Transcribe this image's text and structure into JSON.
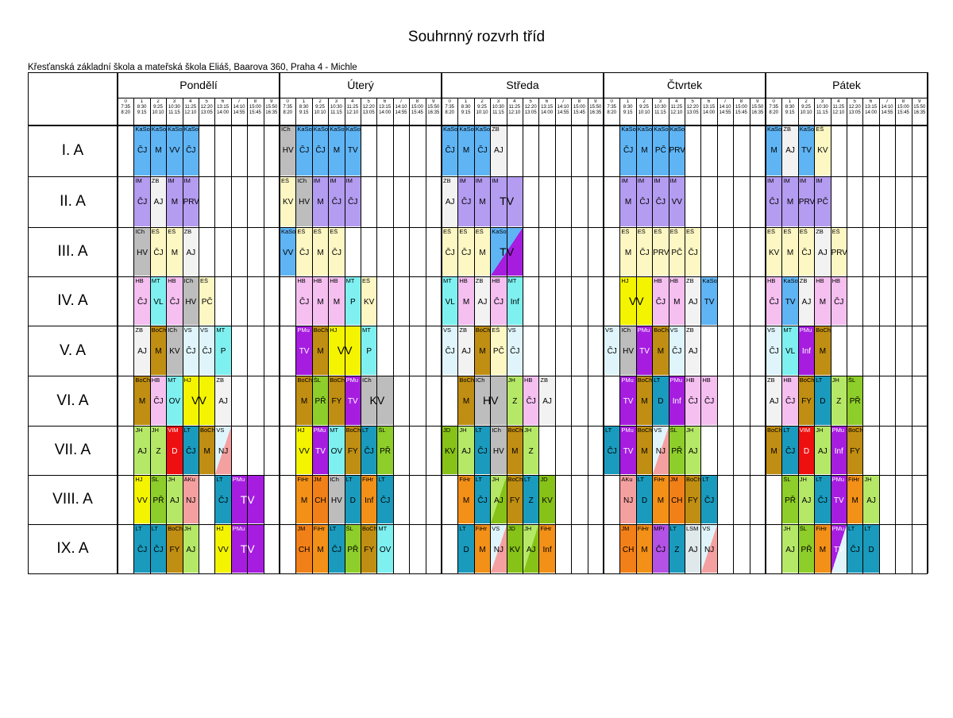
{
  "page": {
    "title": "Souhrnný rozvrh tříd",
    "school": "Křesťanská základní škola a mateřská škola Eliáš, Baarova 360, Praha 4 - Michle"
  },
  "days": [
    "Pondělí",
    "Úterý",
    "Středa",
    "Čtvrtek",
    "Pátek"
  ],
  "periods": [
    {
      "n": "0",
      "start": "7:35",
      "end": "8:20"
    },
    {
      "n": "1",
      "start": "8:30",
      "end": "9:15"
    },
    {
      "n": "2",
      "start": "9:25",
      "end": "10:10"
    },
    {
      "n": "3",
      "start": "10:30",
      "end": "11:15"
    },
    {
      "n": "4",
      "start": "11:25",
      "end": "12:10"
    },
    {
      "n": "5",
      "start": "12:20",
      "end": "13:05"
    },
    {
      "n": "6",
      "start": "13:15",
      "end": "14:00"
    },
    {
      "n": "7",
      "start": "14:10",
      "end": "14:55"
    },
    {
      "n": "8",
      "start": "15:00",
      "end": "15:45"
    },
    {
      "n": "9",
      "start": "15:50",
      "end": "16:35"
    }
  ],
  "classes": [
    "I. A",
    "II. A",
    "III. A",
    "IV. A",
    "V. A",
    "VI. A",
    "VII. A",
    "VIII. A",
    "IX. A"
  ],
  "colors": {
    "KaSo": "#5fb4f4",
    "IM": "#b49cf0",
    "ZB": "#f2f2f2",
    "ICh": "#bdbdbd",
    "EŠ": "#fdf7c4",
    "HB": "#f5bff0",
    "MT": "#7ff0f0",
    "BoCh": "#c08e12",
    "VS": "#dff5fb",
    "HJ": "#f4f400",
    "PMu": "#a61de0",
    "ŠL": "#8ece2a",
    "JH": "#b6e868",
    "VIM": "#ee1010",
    "LT": "#1a9bbd",
    "AKu": "#f5a0a0",
    "FiHr": "#f29018",
    "JM": "#f28018",
    "LSM": "#dfe8ea",
    "JD": "#86c218",
    "NJ": "#f5a0a0",
    "MPr": "#b452e6"
  },
  "schedule": [
    [
      [
        [
          1,
          "KaSo",
          "ČJ"
        ],
        [
          2,
          "KaSo",
          "M"
        ],
        [
          3,
          "KaSo",
          "VV"
        ],
        [
          4,
          "KaSo",
          "ČJ"
        ]
      ],
      [
        [
          0,
          "ICh",
          "HV"
        ],
        [
          1,
          "KaSo",
          "ČJ"
        ],
        [
          2,
          "KaSo",
          "ČJ"
        ],
        [
          3,
          "KaSo",
          "M"
        ],
        [
          4,
          "KaSo",
          "TV"
        ]
      ],
      [
        [
          0,
          "KaSo",
          "ČJ"
        ],
        [
          1,
          "KaSo",
          "M"
        ],
        [
          2,
          "KaSo",
          "ČJ"
        ],
        [
          3,
          "ZB",
          "AJ"
        ]
      ],
      [
        [
          1,
          "KaSo",
          "ČJ"
        ],
        [
          2,
          "KaSo",
          "M"
        ],
        [
          3,
          "KaSo",
          "PČ"
        ],
        [
          4,
          "KaSo",
          "PRV"
        ]
      ],
      [
        [
          0,
          "KaSo",
          "M"
        ],
        [
          1,
          "ZB",
          "AJ"
        ],
        [
          2,
          "KaSo",
          "TV"
        ],
        [
          3,
          "EŠ",
          "KV"
        ]
      ]
    ],
    [
      [
        [
          1,
          "IM",
          "ČJ"
        ],
        [
          2,
          "ZB",
          "AJ"
        ],
        [
          3,
          "IM",
          "M"
        ],
        [
          4,
          "IM",
          "PRV"
        ]
      ],
      [
        [
          0,
          "EŠ",
          "KV"
        ],
        [
          1,
          "ICh",
          "HV"
        ],
        [
          2,
          "IM",
          "M"
        ],
        [
          3,
          "IM",
          "ČJ"
        ],
        [
          4,
          "IM",
          "ČJ"
        ]
      ],
      [
        [
          0,
          "ZB",
          "AJ"
        ],
        [
          1,
          "IM",
          "ČJ"
        ],
        [
          2,
          "IM",
          "M"
        ],
        [
          3,
          "IM",
          "TV",
          2
        ]
      ],
      [
        [
          1,
          "IM",
          "M"
        ],
        [
          2,
          "IM",
          "ČJ"
        ],
        [
          3,
          "IM",
          "ČJ"
        ],
        [
          4,
          "IM",
          "VV"
        ]
      ],
      [
        [
          0,
          "IM",
          "ČJ"
        ],
        [
          1,
          "IM",
          "M"
        ],
        [
          2,
          "IM",
          "PRV"
        ],
        [
          3,
          "IM",
          "PČ"
        ]
      ]
    ],
    [
      [
        [
          1,
          "ICh",
          "HV"
        ],
        [
          2,
          "EŠ",
          "ČJ"
        ],
        [
          3,
          "EŠ",
          "M"
        ],
        [
          4,
          "ZB",
          "AJ"
        ]
      ],
      [
        [
          0,
          "KaSo",
          "VV"
        ],
        [
          1,
          "EŠ",
          "ČJ"
        ],
        [
          2,
          "EŠ",
          "M"
        ],
        [
          3,
          "EŠ",
          "ČJ"
        ]
      ],
      [
        [
          0,
          "EŠ",
          "ČJ"
        ],
        [
          1,
          "EŠ",
          "ČJ"
        ],
        [
          2,
          "EŠ",
          "M"
        ],
        [
          3,
          "KaSo",
          "TV",
          2,
          "PMu"
        ]
      ],
      [
        [
          1,
          "EŠ",
          "M"
        ],
        [
          2,
          "EŠ",
          "ČJ"
        ],
        [
          3,
          "EŠ",
          "PRV"
        ],
        [
          4,
          "EŠ",
          "PČ"
        ],
        [
          5,
          "EŠ",
          "ČJ"
        ]
      ],
      [
        [
          0,
          "EŠ",
          "KV"
        ],
        [
          1,
          "EŠ",
          "M"
        ],
        [
          2,
          "EŠ",
          "ČJ"
        ],
        [
          3,
          "ZB",
          "AJ"
        ],
        [
          4,
          "EŠ",
          "PRV"
        ]
      ]
    ],
    [
      [
        [
          1,
          "HB",
          "ČJ"
        ],
        [
          2,
          "MT",
          "VL"
        ],
        [
          3,
          "HB",
          "ČJ"
        ],
        [
          4,
          "ICh",
          "HV"
        ],
        [
          5,
          "EŠ",
          "PČ"
        ]
      ],
      [
        [
          1,
          "HB",
          "ČJ"
        ],
        [
          2,
          "HB",
          "M"
        ],
        [
          3,
          "HB",
          "M"
        ],
        [
          4,
          "MT",
          "P"
        ],
        [
          5,
          "EŠ",
          "KV"
        ]
      ],
      [
        [
          0,
          "MT",
          "VL"
        ],
        [
          1,
          "HB",
          "M"
        ],
        [
          2,
          "ZB",
          "AJ"
        ],
        [
          3,
          "HB",
          "ČJ"
        ],
        [
          4,
          "MT",
          "Inf"
        ]
      ],
      [
        [
          1,
          "HJ",
          "VV",
          2
        ],
        [
          3,
          "HB",
          "ČJ"
        ],
        [
          4,
          "HB",
          "M"
        ],
        [
          5,
          "ZB",
          "AJ"
        ],
        [
          6,
          "KaSo",
          "TV"
        ]
      ],
      [
        [
          0,
          "HB",
          "ČJ"
        ],
        [
          1,
          "KaSo",
          "TV"
        ],
        [
          2,
          "ZB",
          "AJ"
        ],
        [
          3,
          "HB",
          "M"
        ],
        [
          4,
          "HB",
          "ČJ"
        ]
      ]
    ],
    [
      [
        [
          1,
          "ZB",
          "AJ"
        ],
        [
          2,
          "BoCh",
          "M"
        ],
        [
          3,
          "ICh",
          "KV"
        ],
        [
          4,
          "VS",
          "ČJ"
        ],
        [
          5,
          "VS",
          "ČJ"
        ],
        [
          6,
          "MT",
          "P"
        ]
      ],
      [
        [
          1,
          "PMu",
          "TV"
        ],
        [
          2,
          "BoCh",
          "M"
        ],
        [
          3,
          "HJ",
          "VV",
          2
        ],
        [
          5,
          "MT",
          "P"
        ]
      ],
      [
        [
          0,
          "VS",
          "ČJ"
        ],
        [
          1,
          "ZB",
          "AJ"
        ],
        [
          2,
          "BoCh",
          "M"
        ],
        [
          3,
          "EŠ",
          "PČ"
        ],
        [
          4,
          "VS",
          "ČJ"
        ]
      ],
      [
        [
          0,
          "VS",
          "ČJ"
        ],
        [
          1,
          "ICh",
          "HV"
        ],
        [
          2,
          "PMu",
          "TV"
        ],
        [
          3,
          "BoCh",
          "M"
        ],
        [
          4,
          "VS",
          "ČJ"
        ],
        [
          5,
          "ZB",
          "AJ"
        ]
      ],
      [
        [
          0,
          "VS",
          "ČJ"
        ],
        [
          1,
          "MT",
          "VL"
        ],
        [
          2,
          "PMu",
          "Inf"
        ],
        [
          3,
          "BoCh",
          "M"
        ]
      ]
    ],
    [
      [
        [
          1,
          "BoCh",
          "M"
        ],
        [
          2,
          "HB",
          "ČJ"
        ],
        [
          3,
          "MT",
          "OV"
        ],
        [
          4,
          "HJ",
          "VV",
          2
        ],
        [
          6,
          "ZB",
          "AJ"
        ]
      ],
      [
        [
          1,
          "BoCh",
          "M"
        ],
        [
          2,
          "ŠL",
          "PŘ"
        ],
        [
          3,
          "BoCh",
          "FY"
        ],
        [
          4,
          "PMu",
          "TV"
        ],
        [
          5,
          "ICh",
          "KV",
          2
        ]
      ],
      [
        [
          1,
          "BoCh",
          "M"
        ],
        [
          2,
          "ICh",
          "HV",
          2
        ],
        [
          4,
          "JH",
          "Z"
        ],
        [
          5,
          "HB",
          "ČJ"
        ],
        [
          6,
          "ZB",
          "AJ"
        ]
      ],
      [
        [
          1,
          "PMu",
          "TV"
        ],
        [
          2,
          "BoCh",
          "M"
        ],
        [
          3,
          "LT",
          "D"
        ],
        [
          4,
          "PMu",
          "Inf"
        ],
        [
          5,
          "HB",
          "ČJ"
        ],
        [
          6,
          "HB",
          "ČJ"
        ]
      ],
      [
        [
          0,
          "ZB",
          "AJ"
        ],
        [
          1,
          "HB",
          "ČJ"
        ],
        [
          2,
          "BoCh",
          "FY"
        ],
        [
          3,
          "LT",
          "D"
        ],
        [
          4,
          "JH",
          "Z"
        ],
        [
          5,
          "ŠL",
          "PŘ"
        ]
      ]
    ],
    [
      [
        [
          1,
          "JH",
          "AJ"
        ],
        [
          2,
          "JH",
          "Z"
        ],
        [
          3,
          "VIM",
          "D"
        ],
        [
          4,
          "LT",
          "ČJ"
        ],
        [
          5,
          "BoCh",
          "M"
        ],
        [
          6,
          "VS",
          "NJ",
          1,
          "NJ"
        ]
      ],
      [
        [
          1,
          "HJ",
          "VV"
        ],
        [
          2,
          "PMu",
          "TV"
        ],
        [
          3,
          "MT",
          "OV"
        ],
        [
          4,
          "BoCh",
          "FY"
        ],
        [
          5,
          "LT",
          "ČJ"
        ],
        [
          6,
          "ŠL",
          "PŘ"
        ]
      ],
      [
        [
          0,
          "JD",
          "KV"
        ],
        [
          1,
          "JH",
          "AJ"
        ],
        [
          2,
          "LT",
          "ČJ"
        ],
        [
          3,
          "ICh",
          "HV"
        ],
        [
          4,
          "BoCh",
          "M"
        ],
        [
          5,
          "JH",
          "Z"
        ]
      ],
      [
        [
          0,
          "LT",
          "ČJ"
        ],
        [
          1,
          "PMu",
          "TV"
        ],
        [
          2,
          "BoCh",
          "M"
        ],
        [
          3,
          "VS",
          "NJ",
          1,
          "NJ"
        ],
        [
          4,
          "ŠL",
          "PŘ"
        ],
        [
          5,
          "JH",
          "AJ"
        ]
      ],
      [
        [
          0,
          "BoCh",
          "M"
        ],
        [
          1,
          "LT",
          "ČJ"
        ],
        [
          2,
          "VIM",
          "D"
        ],
        [
          3,
          "JH",
          "AJ"
        ],
        [
          4,
          "PMu",
          "Inf"
        ],
        [
          5,
          "BoCh",
          "FY"
        ]
      ]
    ],
    [
      [
        [
          1,
          "HJ",
          "VV"
        ],
        [
          2,
          "ŠL",
          "PŘ"
        ],
        [
          3,
          "JH",
          "AJ"
        ],
        [
          4,
          "AKu",
          "NJ"
        ],
        [
          6,
          "LT",
          "ČJ"
        ],
        [
          7,
          "PMu",
          "TV",
          2,
          "PMu"
        ]
      ],
      [
        [
          1,
          "FiHr",
          "M"
        ],
        [
          2,
          "JM",
          "CH"
        ],
        [
          3,
          "ICh",
          "HV"
        ],
        [
          4,
          "LT",
          "D"
        ],
        [
          5,
          "FiHr",
          "Inf"
        ],
        [
          6,
          "LT",
          "ČJ"
        ]
      ],
      [
        [
          1,
          "FiHr",
          "M"
        ],
        [
          2,
          "LT",
          "ČJ"
        ],
        [
          3,
          "JH",
          "AJ",
          1,
          "JD"
        ],
        [
          4,
          "BoCh",
          "FY"
        ],
        [
          5,
          "LT",
          "Z"
        ],
        [
          6,
          "JD",
          "KV"
        ]
      ],
      [
        [
          1,
          "AKu",
          "NJ"
        ],
        [
          2,
          "LT",
          "D"
        ],
        [
          3,
          "FiHr",
          "M"
        ],
        [
          4,
          "JM",
          "CH"
        ],
        [
          5,
          "BoCh",
          "FY"
        ],
        [
          6,
          "LT",
          "ČJ"
        ]
      ],
      [
        [
          1,
          "ŠL",
          "PŘ"
        ],
        [
          2,
          "JH",
          "AJ"
        ],
        [
          3,
          "LT",
          "ČJ"
        ],
        [
          4,
          "PMu",
          "TV",
          1,
          "PMu"
        ],
        [
          5,
          "FiHr",
          "M"
        ],
        [
          6,
          "JH",
          "AJ"
        ]
      ]
    ],
    [
      [
        [
          1,
          "LT",
          "ČJ"
        ],
        [
          2,
          "LT",
          "ČJ"
        ],
        [
          3,
          "BoCh",
          "FY"
        ],
        [
          4,
          "JH",
          "AJ"
        ],
        [
          6,
          "HJ",
          "VV"
        ],
        [
          7,
          "PMu",
          "TV",
          2,
          "PMu"
        ]
      ],
      [
        [
          1,
          "JM",
          "CH"
        ],
        [
          2,
          "FiHr",
          "M"
        ],
        [
          3,
          "LT",
          "ČJ"
        ],
        [
          4,
          "ŠL",
          "PŘ"
        ],
        [
          5,
          "BoCh",
          "FY"
        ],
        [
          6,
          "MT",
          "OV"
        ]
      ],
      [
        [
          1,
          "LT",
          "D"
        ],
        [
          2,
          "FiHr",
          "M"
        ],
        [
          3,
          "VS",
          "NJ",
          1,
          "NJ"
        ],
        [
          4,
          "JD",
          "KV"
        ],
        [
          5,
          "JH",
          "AJ",
          1,
          "JD"
        ],
        [
          6,
          "FiHr",
          "Inf"
        ]
      ],
      [
        [
          1,
          "JM",
          "CH"
        ],
        [
          2,
          "FiHr",
          "M"
        ],
        [
          3,
          "MPr",
          "ČJ"
        ],
        [
          4,
          "LT",
          "Z"
        ],
        [
          5,
          "LSM",
          "AJ"
        ],
        [
          6,
          "VS",
          "NJ",
          1,
          "NJ"
        ]
      ],
      [
        [
          1,
          "JH",
          "AJ"
        ],
        [
          2,
          "ŠL",
          "PŘ"
        ],
        [
          3,
          "FiHr",
          "M"
        ],
        [
          4,
          "PMu",
          "TV",
          1,
          "VS"
        ],
        [
          5,
          "LT",
          "ČJ"
        ],
        [
          6,
          "LT",
          "D"
        ]
      ]
    ]
  ]
}
